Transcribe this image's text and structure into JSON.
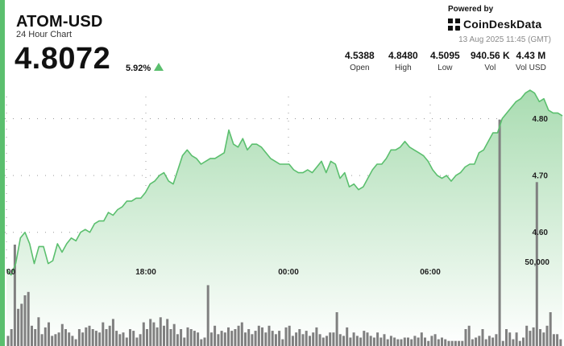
{
  "header": {
    "title": "ATOM-USD",
    "subtitle": "24 Hour Chart",
    "price": "4.8072",
    "change": "5.92%",
    "change_direction": "up"
  },
  "branding": {
    "powered_by": "Powered by",
    "name": "CoinDeskData",
    "icon": "coindesk-logo-icon"
  },
  "timestamp": "13 Aug 2025 11:45 (GMT)",
  "stats": [
    {
      "value": "4.5388",
      "label": "Open"
    },
    {
      "value": "4.8480",
      "label": "High"
    },
    {
      "value": "4.5095",
      "label": "Low"
    },
    {
      "value": "940.56 K",
      "label": "Vol"
    },
    {
      "value": "4.43 M",
      "label": "Vol USD"
    }
  ],
  "colors": {
    "accent": "#5bbf6e",
    "line": "#5bbf6e",
    "area_top": "#a9dcb1",
    "volume": "#808080"
  },
  "chart_data": [
    {
      "type": "area",
      "x_ticks": [
        "00",
        "18:00",
        "00:00",
        "06:00"
      ],
      "y_ticks": [
        4.6,
        4.7,
        4.8
      ],
      "y_tick_labels": [
        "4.60",
        "4.70",
        "4.80"
      ],
      "ylim": [
        4.4,
        4.87
      ],
      "grid": true,
      "values": [
        4.535,
        4.525,
        4.545,
        4.59,
        4.6,
        4.58,
        4.545,
        4.575,
        4.575,
        4.545,
        4.55,
        4.58,
        4.565,
        4.58,
        4.59,
        4.585,
        4.6,
        4.605,
        4.6,
        4.615,
        4.62,
        4.62,
        4.635,
        4.63,
        4.64,
        4.645,
        4.655,
        4.655,
        4.66,
        4.66,
        4.67,
        4.685,
        4.69,
        4.7,
        4.705,
        4.69,
        4.685,
        4.71,
        4.735,
        4.745,
        4.735,
        4.73,
        4.72,
        4.725,
        4.73,
        4.73,
        4.735,
        4.74,
        4.78,
        4.755,
        4.75,
        4.765,
        4.745,
        4.755,
        4.755,
        4.75,
        4.74,
        4.73,
        4.725,
        4.72,
        4.72,
        4.72,
        4.71,
        4.705,
        4.705,
        4.71,
        4.705,
        4.715,
        4.725,
        4.705,
        4.725,
        4.72,
        4.695,
        4.705,
        4.68,
        4.685,
        4.675,
        4.68,
        4.695,
        4.71,
        4.72,
        4.72,
        4.73,
        4.745,
        4.745,
        4.75,
        4.76,
        4.75,
        4.745,
        4.74,
        4.735,
        4.725,
        4.71,
        4.7,
        4.695,
        4.7,
        4.69,
        4.7,
        4.705,
        4.715,
        4.72,
        4.72,
        4.74,
        4.745,
        4.76,
        4.775,
        4.775,
        4.8,
        4.81,
        4.82,
        4.83,
        4.835,
        4.845,
        4.85,
        4.845,
        4.83,
        4.835,
        4.815,
        4.81,
        4.81,
        4.805
      ]
    },
    {
      "type": "bar",
      "series_role": "volume",
      "y_tick_labels": [
        "50,000"
      ],
      "values": [
        6000,
        10000,
        60000,
        22000,
        25000,
        30000,
        32000,
        12000,
        10000,
        17000,
        7000,
        11000,
        14000,
        6000,
        7000,
        8000,
        13000,
        10000,
        8000,
        6000,
        4000,
        10000,
        8000,
        11000,
        12000,
        10000,
        9000,
        8000,
        14000,
        10000,
        12000,
        16000,
        9000,
        7000,
        8000,
        5000,
        10000,
        9000,
        5000,
        7000,
        14000,
        10000,
        16000,
        14000,
        11000,
        17000,
        12000,
        16000,
        10000,
        13000,
        7000,
        10000,
        5000,
        11000,
        10000,
        9000,
        8000,
        4000,
        5000,
        36000,
        8000,
        12000,
        7000,
        9000,
        8000,
        11000,
        9000,
        10000,
        12000,
        14000,
        8000,
        10000,
        7000,
        9000,
        12000,
        11000,
        8000,
        12000,
        9000,
        7000,
        9000,
        4000,
        11000,
        12000,
        6000,
        8000,
        10000,
        7000,
        9000,
        6000,
        8000,
        11000,
        7000,
        5000,
        6000,
        8000,
        8000,
        20000,
        7000,
        6000,
        11000,
        5000,
        8000,
        6000,
        5000,
        9000,
        8000,
        6000,
        5000,
        8000,
        5000,
        7000,
        4000,
        6000,
        5000,
        4000,
        4000,
        5000,
        5000,
        4000,
        6000,
        5000,
        8000,
        5000,
        3000,
        6000,
        7000,
        4000,
        5000,
        4000,
        3000,
        3000,
        3000,
        3000,
        3000,
        10000,
        12000,
        4000,
        5000,
        6000,
        10000,
        4000,
        6000,
        5000,
        7000,
        134000,
        3000,
        10000,
        8000,
        4000,
        8000,
        3000,
        5000,
        12000,
        9000,
        11000,
        97000,
        10000,
        8000,
        12000,
        20000,
        7000,
        7000,
        4000
      ]
    }
  ]
}
